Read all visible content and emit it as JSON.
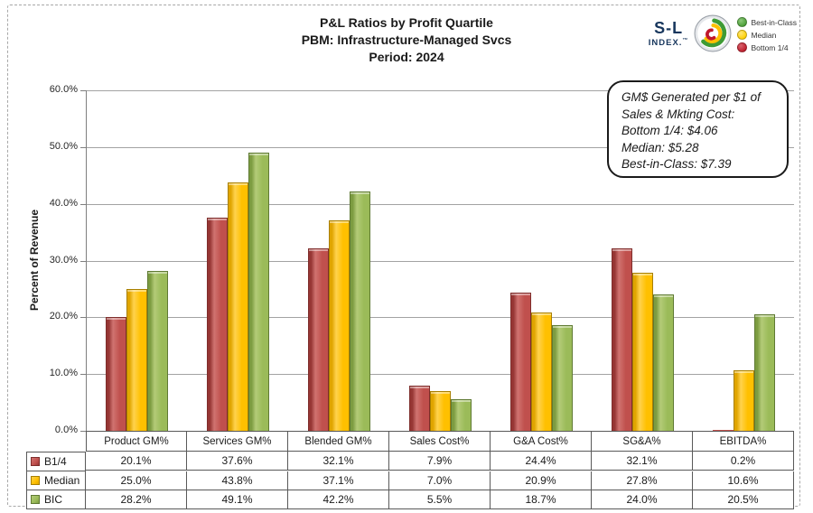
{
  "title": {
    "line1": "P&L Ratios by Profit Quartile",
    "line2": "PBM: Infrastructure-Managed Svcs",
    "line3": "Period: 2024"
  },
  "brand": {
    "name_top": "S-L",
    "name_bottom": "INDEX.",
    "trademark": "™",
    "navy": "#17365d",
    "legend": [
      {
        "label": "Best-in-Class",
        "color": "#4c9f38",
        "light": "#8cc97a"
      },
      {
        "label": "Median",
        "color": "#ffd100",
        "light": "#ffe678"
      },
      {
        "label": "Bottom 1/4",
        "color": "#be1e2d",
        "light": "#d9636e"
      }
    ]
  },
  "annotation": {
    "lines": [
      "GM$ Generated per $1 of",
      "Sales & Mkting Cost:",
      "Bottom 1/4: $4.06",
      "Median: $5.28",
      "Best-in-Class: $7.39"
    ]
  },
  "chart_data": {
    "type": "bar",
    "title": "P&L Ratios by Profit Quartile — PBM: Infrastructure-Managed Svcs — Period: 2024",
    "ylabel": "Percent of Revenue",
    "ylim": [
      0,
      60
    ],
    "yticks": [
      0,
      10,
      20,
      30,
      40,
      50,
      60
    ],
    "ytick_suffix": "%",
    "grid": "horizontal",
    "legend_position": "top-right",
    "data_table_shown": true,
    "categories": [
      "Product GM%",
      "Services GM%",
      "Blended GM%",
      "Sales Cost%",
      "G&A Cost%",
      "SG&A%",
      "EBITDA%"
    ],
    "series": [
      {
        "name": "B1/4",
        "values": [
          20.1,
          37.6,
          32.1,
          7.9,
          24.4,
          32.1,
          0.2
        ],
        "shades": {
          "base": "#c0504d",
          "dark": "#963634",
          "light": "#d07370",
          "border": "#7e2d2b"
        }
      },
      {
        "name": "Median",
        "values": [
          25.0,
          43.8,
          37.1,
          7.0,
          20.9,
          27.8,
          10.6
        ],
        "shades": {
          "base": "#ffc000",
          "dark": "#e0a500",
          "light": "#ffd24d",
          "border": "#a87f00"
        }
      },
      {
        "name": "BIC",
        "values": [
          28.2,
          49.1,
          42.2,
          5.5,
          18.7,
          24.0,
          20.5
        ],
        "shades": {
          "base": "#9bbb59",
          "dark": "#7c9c41",
          "light": "#b3cb78",
          "border": "#5f7a33"
        }
      }
    ]
  }
}
